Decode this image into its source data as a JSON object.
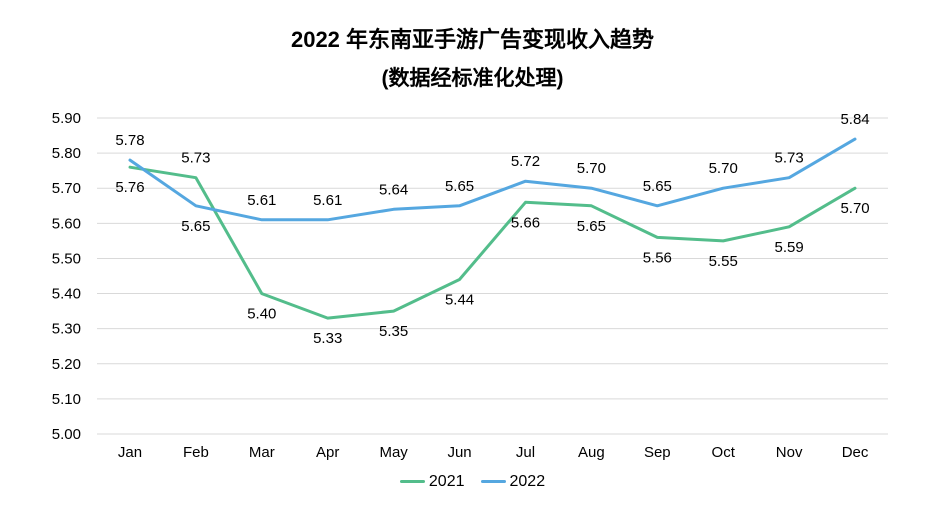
{
  "title": "2022 年东南亚手游广告变现收入趋势",
  "subtitle": "(数据经标准化处理)",
  "colors": {
    "background": "#FFFFFF",
    "text": "#000000",
    "gridline": "#D9D9D9",
    "series_2021": "#53BD8B",
    "series_2022": "#55A7E0"
  },
  "chart_data": {
    "type": "line",
    "title": "2022 年东南亚手游广告变现收入趋势",
    "subtitle": "(数据经标准化处理)",
    "categories": [
      "Jan",
      "Feb",
      "Mar",
      "Apr",
      "May",
      "Jun",
      "Jul",
      "Aug",
      "Sep",
      "Oct",
      "Nov",
      "Dec"
    ],
    "series": [
      {
        "name": "2021",
        "color": "#53BD8B",
        "values": [
          5.76,
          5.73,
          5.4,
          5.33,
          5.35,
          5.44,
          5.66,
          5.65,
          5.56,
          5.55,
          5.59,
          5.7
        ]
      },
      {
        "name": "2022",
        "color": "#55A7E0",
        "values": [
          5.78,
          5.65,
          5.61,
          5.61,
          5.64,
          5.65,
          5.72,
          5.7,
          5.65,
          5.7,
          5.73,
          5.84
        ]
      }
    ],
    "ylim": [
      5.0,
      5.9
    ],
    "yticks": [
      "5.00",
      "5.10",
      "5.20",
      "5.30",
      "5.40",
      "5.50",
      "5.60",
      "5.70",
      "5.80",
      "5.90"
    ],
    "xlabel": "",
    "ylabel": "",
    "grid": true,
    "gridline_color": "#D9D9D9",
    "data_labels": true,
    "data_label_decimals": 2,
    "legend_position": "bottom",
    "legend": [
      "2021",
      "2022"
    ]
  }
}
